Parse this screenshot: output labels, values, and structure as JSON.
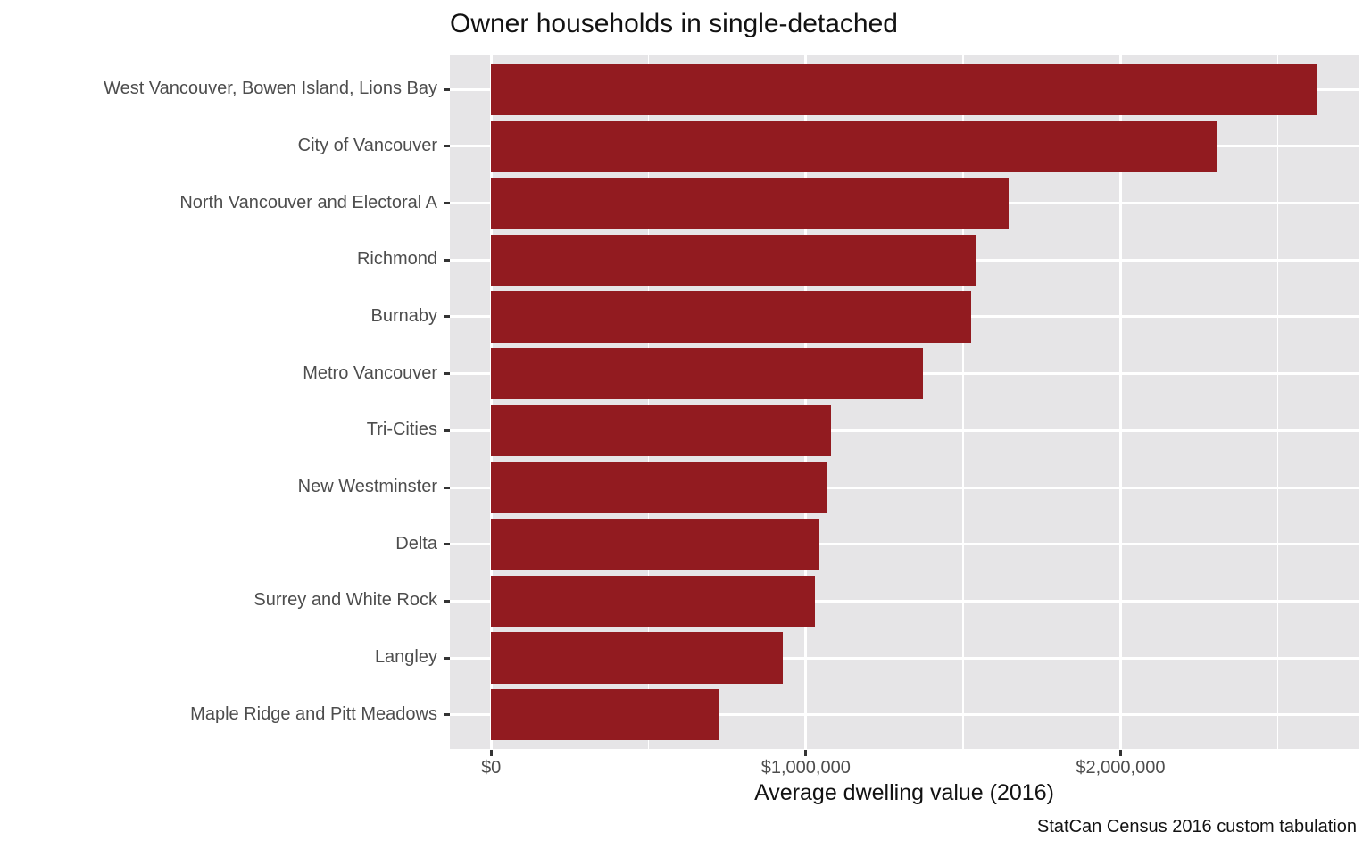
{
  "title": "Owner households in single-detached",
  "x_axis": {
    "label": "Average dwelling value (2016)",
    "tick_labels": [
      "$0",
      "$1,000,000",
      "$2,000,000"
    ]
  },
  "caption": "StatCan Census 2016 custom tabulation",
  "colors": {
    "bar": "#921b20",
    "panel_background": "#e6e5e7",
    "gridline": "#ffffff",
    "axis_text": "#4d4d4d",
    "tick_mark": "#333333",
    "title_text": "#121212"
  },
  "chart_data": {
    "type": "bar",
    "orientation": "horizontal",
    "title": "Owner households in single-detached",
    "xlabel": "Average dwelling value (2016)",
    "ylabel": "",
    "caption": "StatCan Census 2016 custom tabulation",
    "categories": [
      "West Vancouver, Bowen Island, Lions Bay",
      "City of Vancouver",
      "North Vancouver and Electoral A",
      "Richmond",
      "Burnaby",
      "Metro Vancouver",
      "Tri-Cities",
      "New Westminster",
      "Delta",
      "Surrey and White Rock",
      "Langley",
      "Maple Ridge and Pitt Meadows"
    ],
    "values": [
      2624000,
      2308000,
      1643000,
      1538000,
      1526000,
      1371000,
      1081000,
      1066000,
      1042000,
      1028000,
      928000,
      725000
    ],
    "x_ticks": [
      {
        "value": 0,
        "label": "$0"
      },
      {
        "value": 1000000,
        "label": "$1,000,000"
      },
      {
        "value": 2000000,
        "label": "$2,000,000"
      }
    ],
    "x_minor_gridlines": [
      500000,
      1500000,
      2500000
    ],
    "xlim": [
      -131000,
      2756000
    ],
    "grid": true,
    "legend_position": "none",
    "bar_color": "#921b20"
  }
}
